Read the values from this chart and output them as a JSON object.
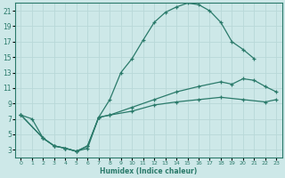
{
  "xlabel": "Humidex (Indice chaleur)",
  "bg_color": "#cde8e8",
  "grid_color": "#b8d8d8",
  "line_color": "#2a7a6a",
  "xlim": [
    -0.5,
    23.5
  ],
  "ylim": [
    2,
    22
  ],
  "yticks": [
    3,
    5,
    7,
    9,
    11,
    13,
    15,
    17,
    19,
    21
  ],
  "xticks": [
    0,
    1,
    2,
    3,
    4,
    5,
    6,
    7,
    8,
    9,
    10,
    11,
    12,
    13,
    14,
    15,
    16,
    17,
    18,
    19,
    20,
    21,
    22,
    23
  ],
  "curve1_x": [
    0,
    1,
    2,
    3,
    4,
    5,
    6,
    7,
    8,
    9,
    10,
    11,
    12,
    13,
    14,
    15,
    16,
    17,
    18,
    19,
    20,
    21
  ],
  "curve1_y": [
    7.5,
    7.0,
    4.5,
    3.5,
    3.2,
    2.8,
    3.2,
    7.2,
    9.5,
    13.0,
    14.8,
    17.2,
    19.5,
    20.8,
    21.5,
    22.0,
    21.8,
    21.0,
    19.5,
    17.0,
    16.0,
    14.8
  ],
  "curve2_x": [
    0,
    2,
    3,
    4,
    5,
    6,
    7,
    8,
    10,
    12,
    14,
    16,
    18,
    19,
    20,
    21,
    22,
    23
  ],
  "curve2_y": [
    7.5,
    4.5,
    3.5,
    3.2,
    2.8,
    3.5,
    7.2,
    7.5,
    8.5,
    9.5,
    10.5,
    11.2,
    11.8,
    11.5,
    12.2,
    12.0,
    11.2,
    10.5
  ],
  "curve3_x": [
    0,
    2,
    3,
    4,
    5,
    6,
    7,
    8,
    10,
    12,
    14,
    16,
    18,
    20,
    22,
    23
  ],
  "curve3_y": [
    7.5,
    4.5,
    3.5,
    3.2,
    2.8,
    3.5,
    7.2,
    7.5,
    8.0,
    8.8,
    9.2,
    9.5,
    9.8,
    9.5,
    9.2,
    9.5
  ]
}
